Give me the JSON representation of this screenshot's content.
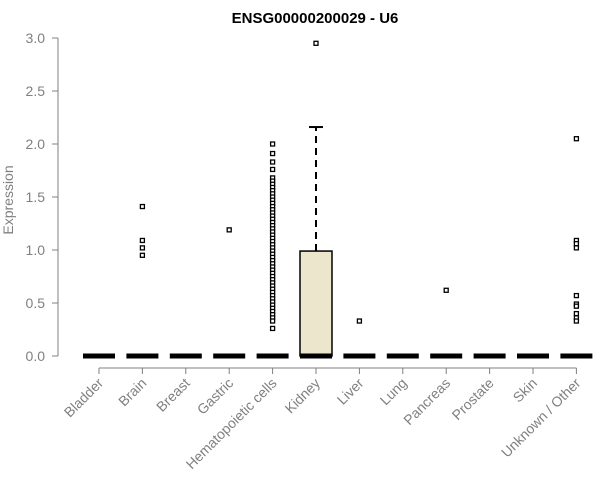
{
  "chart_data": {
    "type": "box",
    "title": "ENSG00000200029 - U6",
    "xlabel": "",
    "ylabel": "Expression",
    "ylim": [
      0,
      3.0
    ],
    "yticks": [
      "0.0",
      "0.5",
      "1.0",
      "1.5",
      "2.0",
      "2.5",
      "3.0"
    ],
    "grid": false,
    "box_color": "#ece6cc",
    "categories": [
      "Bladder",
      "Brain",
      "Breast",
      "Gastric",
      "Hematopoietic cells",
      "Kidney",
      "Liver",
      "Lung",
      "Pancreas",
      "Prostate",
      "Skin",
      "Unknown / Other"
    ],
    "boxes": [
      {
        "median": 0,
        "q1": 0,
        "q3": 0,
        "whisker_low": 0,
        "whisker_high": 0
      },
      {
        "median": 0,
        "q1": 0,
        "q3": 0,
        "whisker_low": 0,
        "whisker_high": 0
      },
      {
        "median": 0,
        "q1": 0,
        "q3": 0,
        "whisker_low": 0,
        "whisker_high": 0
      },
      {
        "median": 0,
        "q1": 0,
        "q3": 0,
        "whisker_low": 0,
        "whisker_high": 0
      },
      {
        "median": 0,
        "q1": 0,
        "q3": 0,
        "whisker_low": 0,
        "whisker_high": 0
      },
      {
        "median": 0,
        "q1": 0,
        "q3": 0.99,
        "whisker_low": 0,
        "whisker_high": 2.16
      },
      {
        "median": 0,
        "q1": 0,
        "q3": 0,
        "whisker_low": 0,
        "whisker_high": 0
      },
      {
        "median": 0,
        "q1": 0,
        "q3": 0,
        "whisker_low": 0,
        "whisker_high": 0
      },
      {
        "median": 0,
        "q1": 0,
        "q3": 0,
        "whisker_low": 0,
        "whisker_high": 0
      },
      {
        "median": 0,
        "q1": 0,
        "q3": 0,
        "whisker_low": 0,
        "whisker_high": 0
      },
      {
        "median": 0,
        "q1": 0,
        "q3": 0,
        "whisker_low": 0,
        "whisker_high": 0
      },
      {
        "median": 0,
        "q1": 0,
        "q3": 0,
        "whisker_low": 0,
        "whisker_high": 0
      }
    ],
    "outliers": [
      [],
      [
        1.41,
        1.09,
        1.02,
        0.95
      ],
      [],
      [
        1.19
      ],
      [
        2.0,
        1.91,
        1.83,
        1.76,
        1.68,
        1.65,
        1.62,
        1.59,
        1.56,
        1.53,
        1.5,
        1.47,
        1.44,
        1.41,
        1.38,
        1.35,
        1.32,
        1.29,
        1.26,
        1.23,
        1.2,
        1.17,
        1.14,
        1.11,
        1.08,
        1.05,
        1.02,
        0.99,
        0.96,
        0.93,
        0.9,
        0.87,
        0.84,
        0.81,
        0.78,
        0.75,
        0.72,
        0.69,
        0.66,
        0.63,
        0.6,
        0.57,
        0.54,
        0.51,
        0.48,
        0.45,
        0.42,
        0.39,
        0.36,
        0.33,
        0.26
      ],
      [
        2.95
      ],
      [
        0.33
      ],
      [],
      [
        0.62
      ],
      [],
      [],
      [
        2.05,
        1.09,
        1.06,
        1.02,
        0.57,
        0.49,
        0.47,
        0.4,
        0.36,
        0.33
      ]
    ]
  }
}
